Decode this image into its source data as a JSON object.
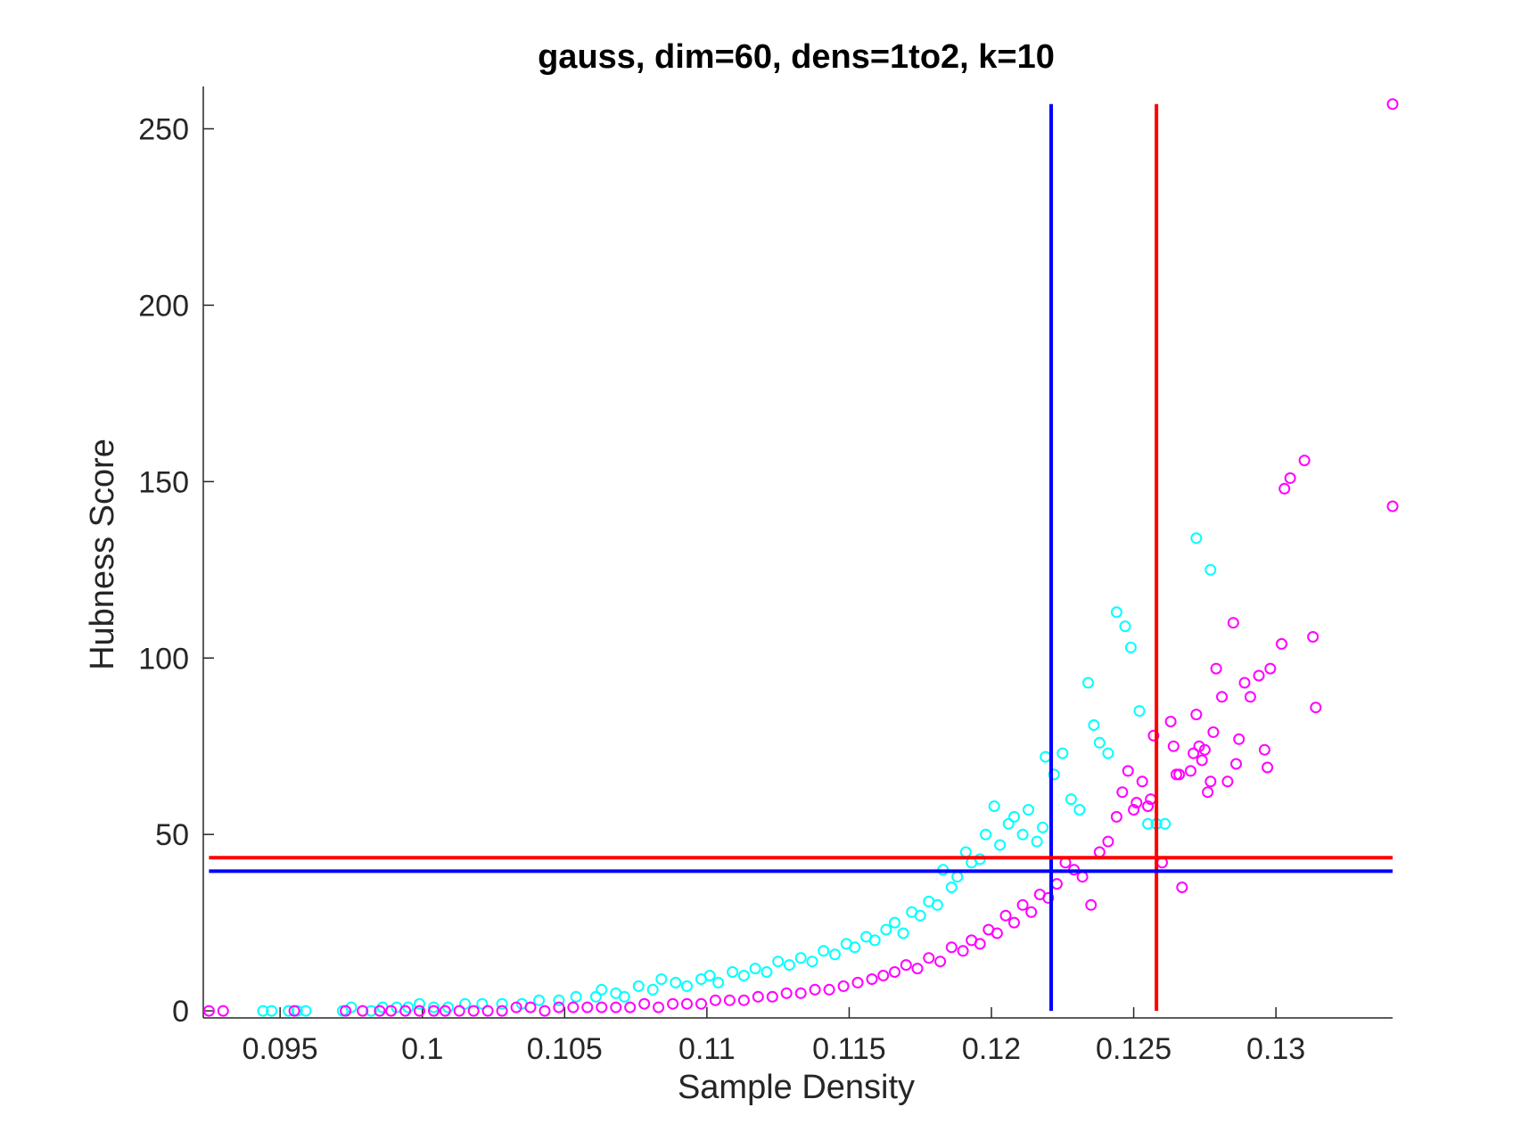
{
  "chart_data": {
    "type": "scatter",
    "title": "gauss, dim=60, dens=1to2, k=10",
    "xlabel": "Sample Density",
    "ylabel": "Hubness Score",
    "xlim": [
      0.0923,
      0.1341
    ],
    "ylim": [
      -2,
      262
    ],
    "xticks": [
      0.095,
      0.1,
      0.105,
      0.11,
      0.115,
      0.12,
      0.125,
      0.13
    ],
    "xtick_labels": [
      "0.095",
      "0.1",
      "0.105",
      "0.11",
      "0.115",
      "0.12",
      "0.125",
      "0.13"
    ],
    "yticks": [
      0,
      50,
      100,
      150,
      200,
      250
    ],
    "ytick_labels": [
      "0",
      "50",
      "100",
      "150",
      "200",
      "250"
    ],
    "grid": false,
    "colors": {
      "cyan": "#00FFFF",
      "magenta": "#FF00FF",
      "blue": "#0000FF",
      "red": "#FF0000"
    },
    "series": [
      {
        "color": "#00FFFF",
        "marker": "circle-open",
        "x": [
          0.0944,
          0.0947,
          0.0953,
          0.0956,
          0.0959,
          0.0972,
          0.0975,
          0.0982,
          0.0986,
          0.0991,
          0.0995,
          0.0999,
          0.1004,
          0.1009,
          0.1015,
          0.1021,
          0.1028,
          0.1035,
          0.1041,
          0.1048,
          0.1054,
          0.1061,
          0.1063,
          0.1068,
          0.1071,
          0.1076,
          0.1081,
          0.1084,
          0.1089,
          0.1093,
          0.1098,
          0.1101,
          0.1104,
          0.1109,
          0.1113,
          0.1117,
          0.1121,
          0.1125,
          0.1129,
          0.1133,
          0.1137,
          0.1141,
          0.1145,
          0.1149,
          0.1152,
          0.1156,
          0.1159,
          0.1163,
          0.1166,
          0.1169,
          0.1172,
          0.1175,
          0.1178,
          0.1181,
          0.1183,
          0.1186,
          0.1188,
          0.1191,
          0.1193,
          0.1196,
          0.1198,
          0.1201,
          0.1203,
          0.1206,
          0.1208,
          0.1211,
          0.1213,
          0.1216,
          0.1218,
          0.1219,
          0.1222,
          0.1225,
          0.1228,
          0.1231,
          0.1234,
          0.1236,
          0.1238,
          0.1241,
          0.1244,
          0.1247,
          0.1249,
          0.1252,
          0.1255,
          0.1258,
          0.1261,
          0.1272,
          0.1277
        ],
        "y": [
          0,
          0,
          0,
          0,
          0,
          0,
          1,
          0,
          1,
          1,
          1,
          2,
          1,
          1,
          2,
          2,
          2,
          2,
          3,
          3,
          4,
          4,
          6,
          5,
          4,
          7,
          6,
          9,
          8,
          7,
          9,
          10,
          8,
          11,
          10,
          12,
          11,
          14,
          13,
          15,
          14,
          17,
          16,
          19,
          18,
          21,
          20,
          23,
          25,
          22,
          28,
          27,
          31,
          30,
          40,
          35,
          38,
          45,
          42,
          43,
          50,
          58,
          47,
          53,
          55,
          50,
          57,
          48,
          52,
          72,
          67,
          73,
          60,
          57,
          93,
          81,
          76,
          73,
          113,
          109,
          103,
          85,
          53,
          53,
          53,
          134,
          125
        ]
      },
      {
        "color": "#FF00FF",
        "marker": "circle-open",
        "x": [
          0.0925,
          0.093,
          0.0955,
          0.0973,
          0.0979,
          0.0985,
          0.0989,
          0.0994,
          0.0999,
          0.1004,
          0.1008,
          0.1013,
          0.1018,
          0.1023,
          0.1028,
          0.1033,
          0.1038,
          0.1043,
          0.1048,
          0.1053,
          0.1058,
          0.1063,
          0.1068,
          0.1073,
          0.1078,
          0.1083,
          0.1088,
          0.1093,
          0.1098,
          0.1103,
          0.1108,
          0.1113,
          0.1118,
          0.1123,
          0.1128,
          0.1133,
          0.1138,
          0.1143,
          0.1148,
          0.1153,
          0.1158,
          0.1162,
          0.1166,
          0.117,
          0.1174,
          0.1178,
          0.1182,
          0.1186,
          0.119,
          0.1193,
          0.1196,
          0.1199,
          0.1202,
          0.1205,
          0.1208,
          0.1211,
          0.1214,
          0.1217,
          0.122,
          0.1223,
          0.1226,
          0.1229,
          0.1232,
          0.1235,
          0.1238,
          0.1241,
          0.1244,
          0.1246,
          0.1248,
          0.125,
          0.1251,
          0.1253,
          0.1255,
          0.1256,
          0.1257,
          0.126,
          0.1263,
          0.1264,
          0.1265,
          0.1266,
          0.1267,
          0.127,
          0.1271,
          0.1272,
          0.1273,
          0.1274,
          0.1275,
          0.1276,
          0.1277,
          0.1278,
          0.1279,
          0.1281,
          0.1283,
          0.1285,
          0.1286,
          0.1287,
          0.1289,
          0.1291,
          0.1294,
          0.1296,
          0.1297,
          0.1298,
          0.1302,
          0.1303,
          0.1305,
          0.131,
          0.1313,
          0.1314,
          0.1341
        ],
        "y": [
          0,
          0,
          0,
          0,
          0,
          0,
          0,
          0,
          0,
          0,
          0,
          0,
          0,
          0,
          0,
          1,
          1,
          0,
          1,
          1,
          1,
          1,
          1,
          1,
          2,
          1,
          2,
          2,
          2,
          3,
          3,
          3,
          4,
          4,
          5,
          5,
          6,
          6,
          7,
          8,
          9,
          10,
          11,
          13,
          12,
          15,
          14,
          18,
          17,
          20,
          19,
          23,
          22,
          27,
          25,
          30,
          28,
          33,
          32,
          36,
          42,
          40,
          38,
          30,
          45,
          48,
          55,
          62,
          68,
          57,
          59,
          65,
          58,
          60,
          78,
          42,
          82,
          75,
          67,
          67,
          35,
          68,
          73,
          84,
          75,
          71,
          74,
          62,
          65,
          79,
          97,
          89,
          65,
          110,
          70,
          77,
          93,
          89,
          95,
          74,
          69,
          97,
          104,
          148,
          151,
          156,
          106,
          86,
          143
        ]
      }
    ],
    "reference_lines": [
      {
        "color": "#0000FF",
        "orientation": "vertical",
        "x": 0.1221,
        "y_range": [
          0,
          257
        ]
      },
      {
        "color": "#FF0000",
        "orientation": "vertical",
        "x": 0.1258,
        "y_range": [
          0,
          257
        ]
      },
      {
        "color": "#0000FF",
        "orientation": "horizontal",
        "y": 39.6,
        "x_range": [
          0.0925,
          0.1341
        ]
      },
      {
        "color": "#FF0000",
        "orientation": "horizontal",
        "y": 43.4,
        "x_range": [
          0.0925,
          0.1341
        ]
      }
    ],
    "extra_magenta_points": [
      {
        "x": 0.1341,
        "y": 257
      }
    ]
  }
}
